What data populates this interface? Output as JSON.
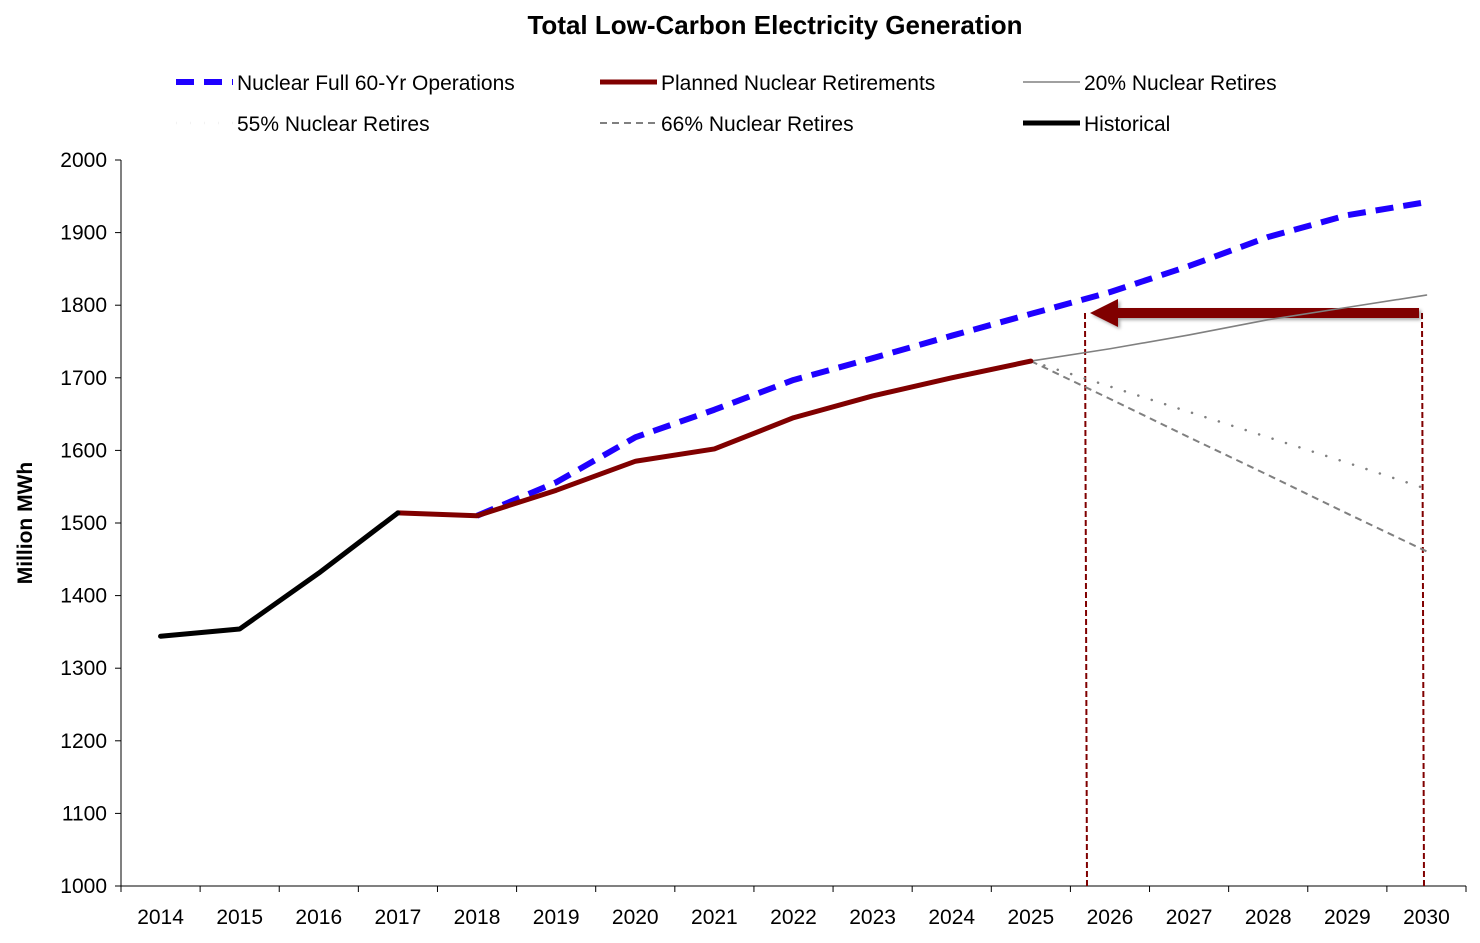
{
  "chart_data": {
    "type": "line",
    "title": "Total Low-Carbon Electricity Generation",
    "ylabel": "Million MWh",
    "xlabel": "",
    "ylim": [
      1000,
      2000
    ],
    "yticks": [
      "1000",
      "1100",
      "1200",
      "1300",
      "1400",
      "1500",
      "1600",
      "1700",
      "1800",
      "1900",
      "2000"
    ],
    "categories": [
      "2014",
      "2015",
      "2016",
      "2017",
      "2018",
      "2019",
      "2020",
      "2021",
      "2022",
      "2023",
      "2024",
      "2025",
      "2026",
      "2027",
      "2028",
      "2029",
      "2030"
    ],
    "grid": false,
    "legend_position": "top",
    "series": [
      {
        "name": "Nuclear Full 60-Yr Operations",
        "color": "#1f00ff",
        "style": "dashed-thick",
        "values": [
          null,
          null,
          null,
          null,
          1510,
          1556,
          1618,
          1656,
          1697,
          1727,
          1758,
          1788,
          1818,
          1854,
          1894,
          1924,
          1942
        ]
      },
      {
        "name": "Planned Nuclear Retirements",
        "color": "#800000",
        "style": "solid-thick",
        "values": [
          null,
          null,
          null,
          1514,
          1510,
          1545,
          1585,
          1602,
          1645,
          1675,
          1700,
          1723,
          null,
          null,
          null,
          null,
          null
        ]
      },
      {
        "name": "20% Nuclear Retires",
        "color": "#808080",
        "style": "solid-thin",
        "values": [
          null,
          null,
          null,
          null,
          null,
          null,
          null,
          null,
          null,
          null,
          null,
          1723,
          1740,
          1759,
          1780,
          1797,
          1814
        ]
      },
      {
        "name": "55% Nuclear Retires",
        "color": "#808080",
        "style": "dotted",
        "values": [
          null,
          null,
          null,
          null,
          null,
          null,
          null,
          null,
          null,
          null,
          null,
          1723,
          1688,
          1653,
          1618,
          1583,
          1547
        ]
      },
      {
        "name": "66% Nuclear Retires",
        "color": "#808080",
        "style": "dashed-thin",
        "values": [
          null,
          null,
          null,
          null,
          null,
          null,
          null,
          null,
          null,
          null,
          null,
          1723,
          1671,
          1618,
          1566,
          1513,
          1461
        ]
      },
      {
        "name": "Historical",
        "color": "#000000",
        "style": "solid-thick",
        "values": [
          1344,
          1354,
          1431,
          1514,
          null,
          null,
          null,
          null,
          null,
          null,
          null,
          null,
          null,
          null,
          null,
          null,
          null
        ]
      }
    ],
    "annotation_color": "#800000"
  }
}
